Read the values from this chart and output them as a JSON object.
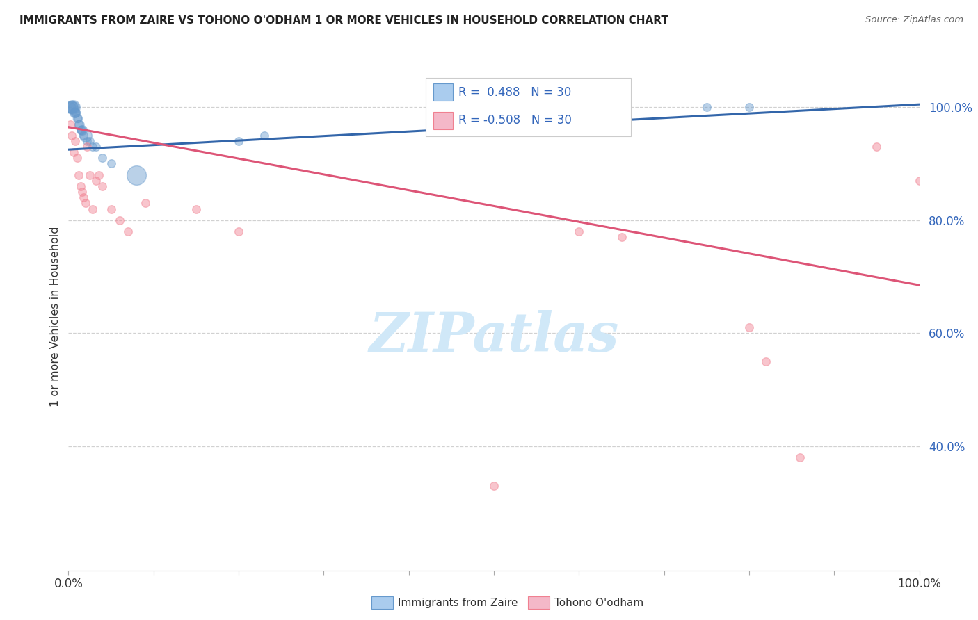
{
  "title": "IMMIGRANTS FROM ZAIRE VS TOHONO O'ODHAM 1 OR MORE VEHICLES IN HOUSEHOLD CORRELATION CHART",
  "source": "Source: ZipAtlas.com",
  "ylabel": "1 or more Vehicles in Household",
  "xlim": [
    0.0,
    1.0
  ],
  "ylim": [
    0.18,
    1.08
  ],
  "ytick_vals": [
    0.4,
    0.6,
    0.8,
    1.0
  ],
  "ytick_labels": [
    "40.0%",
    "60.0%",
    "80.0%",
    "100.0%"
  ],
  "legend_r1": "R =  0.488",
  "legend_n1": "N = 30",
  "legend_r2": "R = -0.508",
  "legend_n2": "N = 30",
  "legend_color1": "#aaccee",
  "legend_color2": "#f4b8c8",
  "color_blue": "#6699cc",
  "color_pink": "#f08090",
  "line_color_blue": "#3366aa",
  "line_color_pink": "#dd5577",
  "watermark_text": "ZIPatlas",
  "watermark_color": "#d0e8f8",
  "blue_dots": [
    [
      0.002,
      1.0
    ],
    [
      0.003,
      1.0
    ],
    [
      0.004,
      1.0
    ],
    [
      0.005,
      1.0
    ],
    [
      0.006,
      1.0
    ],
    [
      0.007,
      0.99
    ],
    [
      0.008,
      0.99
    ],
    [
      0.009,
      0.99
    ],
    [
      0.01,
      0.98
    ],
    [
      0.011,
      0.98
    ],
    [
      0.012,
      0.97
    ],
    [
      0.013,
      0.97
    ],
    [
      0.014,
      0.96
    ],
    [
      0.015,
      0.96
    ],
    [
      0.016,
      0.96
    ],
    [
      0.018,
      0.95
    ],
    [
      0.02,
      0.95
    ],
    [
      0.022,
      0.94
    ],
    [
      0.025,
      0.94
    ],
    [
      0.028,
      0.93
    ],
    [
      0.032,
      0.93
    ],
    [
      0.04,
      0.91
    ],
    [
      0.05,
      0.9
    ],
    [
      0.08,
      0.88
    ],
    [
      0.2,
      0.94
    ],
    [
      0.23,
      0.95
    ],
    [
      0.55,
      1.0
    ],
    [
      0.6,
      1.0
    ],
    [
      0.75,
      1.0
    ],
    [
      0.8,
      1.0
    ]
  ],
  "blue_sizes": [
    120,
    180,
    150,
    200,
    120,
    100,
    90,
    80,
    80,
    70,
    80,
    90,
    70,
    80,
    100,
    70,
    160,
    70,
    70,
    70,
    70,
    70,
    70,
    400,
    70,
    70,
    70,
    70,
    70,
    70
  ],
  "pink_dots": [
    [
      0.002,
      0.97
    ],
    [
      0.004,
      0.95
    ],
    [
      0.006,
      0.92
    ],
    [
      0.008,
      0.94
    ],
    [
      0.01,
      0.91
    ],
    [
      0.012,
      0.88
    ],
    [
      0.014,
      0.86
    ],
    [
      0.016,
      0.85
    ],
    [
      0.018,
      0.84
    ],
    [
      0.02,
      0.83
    ],
    [
      0.022,
      0.93
    ],
    [
      0.025,
      0.88
    ],
    [
      0.028,
      0.82
    ],
    [
      0.032,
      0.87
    ],
    [
      0.036,
      0.88
    ],
    [
      0.04,
      0.86
    ],
    [
      0.05,
      0.82
    ],
    [
      0.06,
      0.8
    ],
    [
      0.07,
      0.78
    ],
    [
      0.09,
      0.83
    ],
    [
      0.15,
      0.82
    ],
    [
      0.2,
      0.78
    ],
    [
      0.5,
      0.33
    ],
    [
      0.6,
      0.78
    ],
    [
      0.65,
      0.77
    ],
    [
      0.8,
      0.61
    ],
    [
      0.82,
      0.55
    ],
    [
      0.86,
      0.38
    ],
    [
      0.95,
      0.93
    ],
    [
      1.0,
      0.87
    ]
  ],
  "pink_sizes": [
    70,
    70,
    70,
    70,
    70,
    70,
    70,
    70,
    70,
    70,
    70,
    70,
    70,
    70,
    70,
    70,
    70,
    70,
    70,
    70,
    70,
    70,
    70,
    70,
    70,
    70,
    70,
    70,
    70,
    70
  ],
  "blue_line_x": [
    0.0,
    1.0
  ],
  "blue_line_y": [
    0.925,
    1.005
  ],
  "pink_line_x": [
    0.0,
    1.0
  ],
  "pink_line_y": [
    0.965,
    0.685
  ],
  "bg_color": "#ffffff",
  "tick_color": "#3366bb",
  "grid_color": "#cccccc",
  "bottom_legend_zaire": "Immigrants from Zaire",
  "bottom_legend_tohono": "Tohono O'odham"
}
